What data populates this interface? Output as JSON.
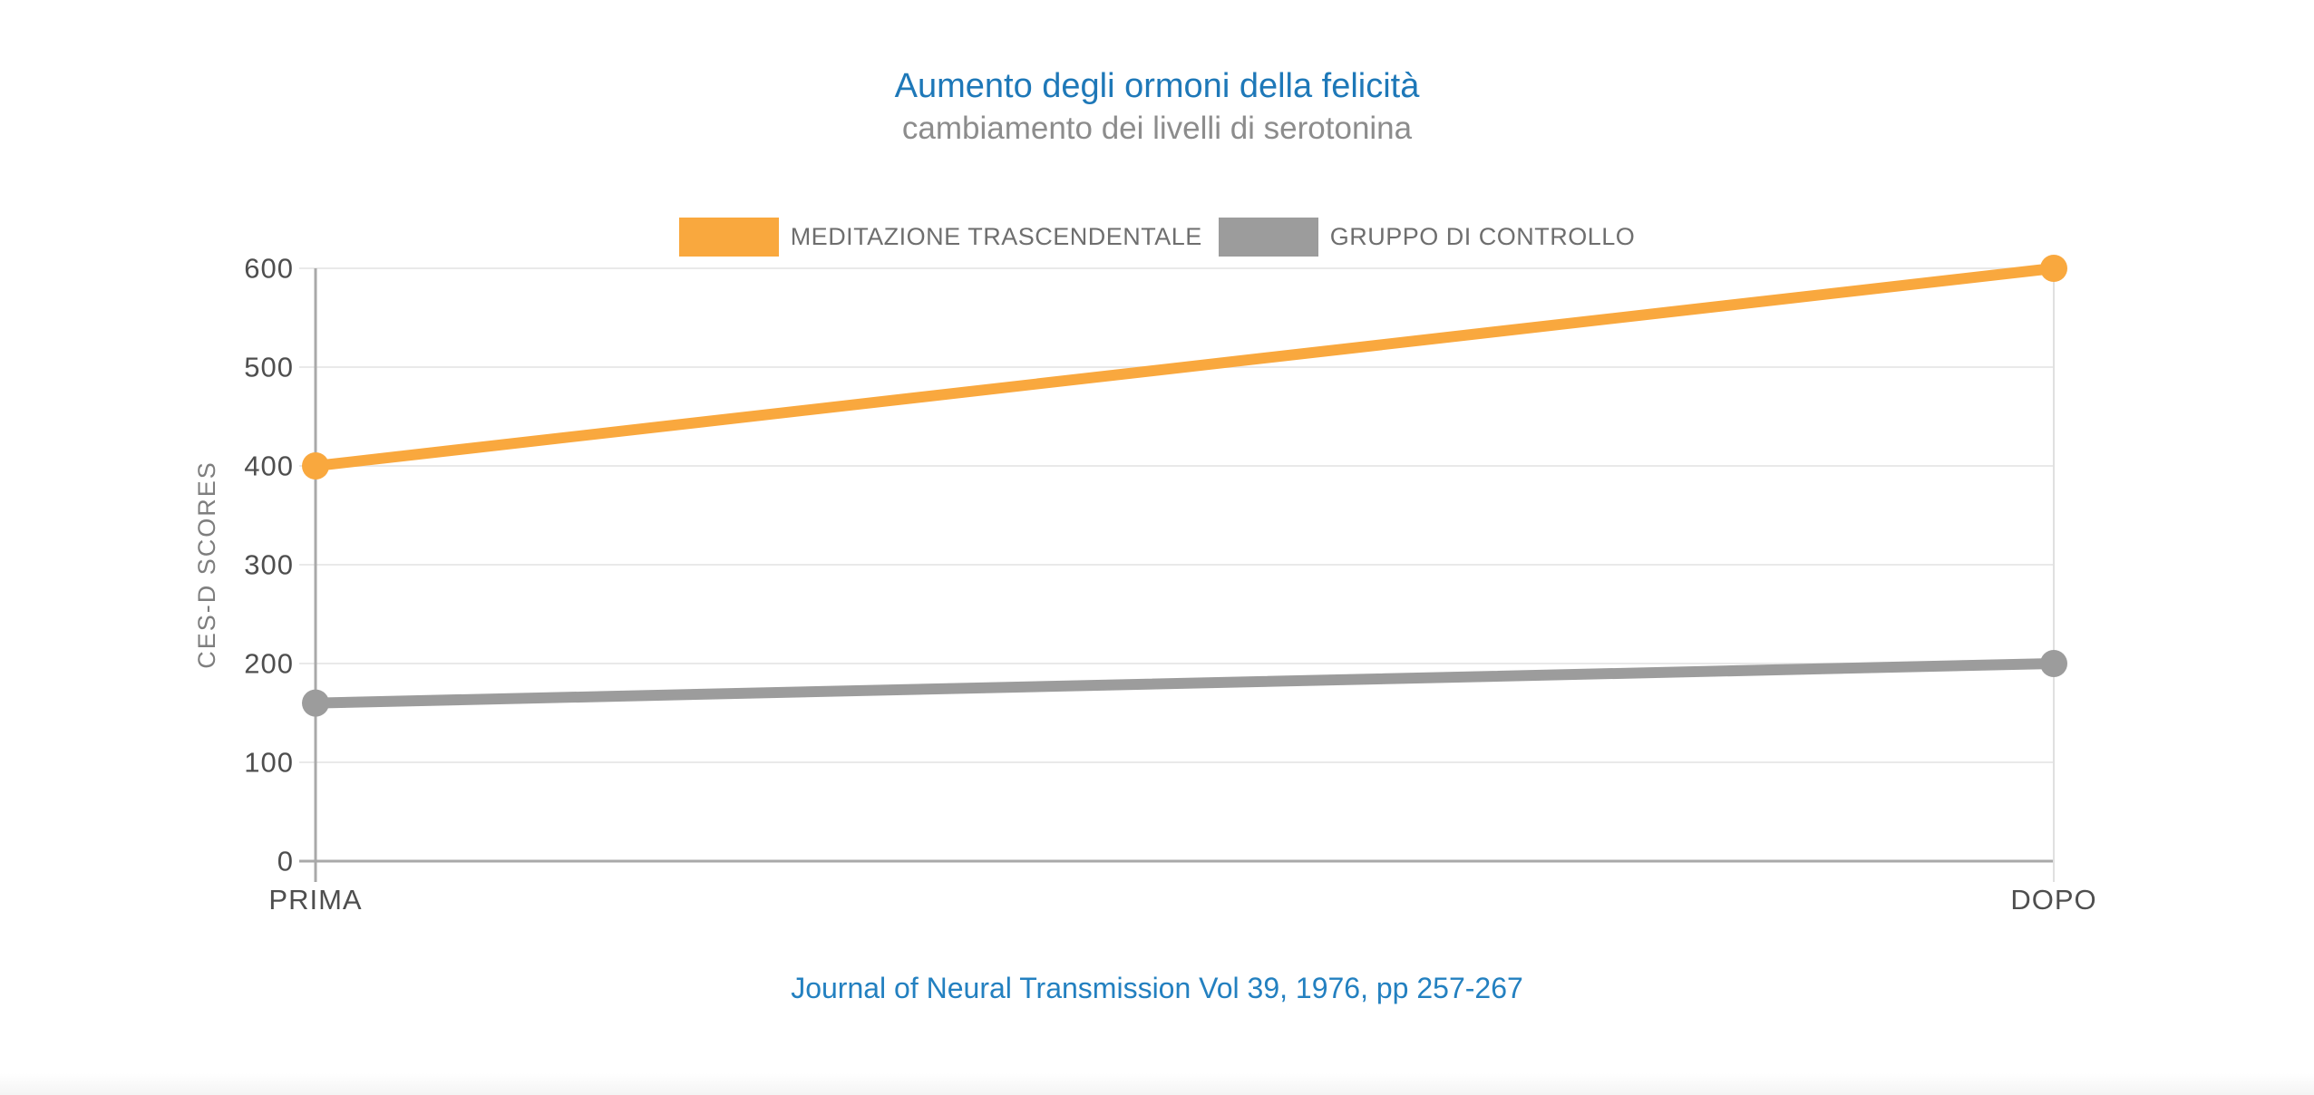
{
  "colors": {
    "title_blue": "#1E78B8",
    "subtitle_gray": "#8C8C8C",
    "legend_text": "#6E6E6E",
    "axis_text": "#4E4E4E",
    "axis_label_gray": "#7E7E7E",
    "footer_blue": "#2380C0",
    "grid_line": "#E9E9E9",
    "axis_line": "#A9A9A9",
    "right_axis_line": "#E0E0E0",
    "tm_orange": "#F9A83E",
    "control_gray": "#9C9C9C"
  },
  "chart_data": {
    "type": "line",
    "title": "Aumento degli ormoni della felicità",
    "subtitle": "cambiamento dei livelli di serotonina",
    "source": "Journal of Neural Transmission Vol 39, 1976, pp 257-267",
    "x": [
      "PRIMA",
      "DOPO"
    ],
    "series": [
      {
        "id": "meditazione-trascendentale",
        "name": "MEDITAZIONE TRASCENDENTALE",
        "values": [
          400,
          600
        ],
        "color": "#F9A83E"
      },
      {
        "id": "gruppo-di-controllo",
        "name": "GRUPPO DI CONTROLLO",
        "values": [
          160,
          200
        ],
        "color": "#9C9C9C"
      }
    ],
    "xlabel": "",
    "ylabel": "CES-D SCORES",
    "ylim": [
      0,
      600
    ],
    "ytick_step": 100,
    "grid": true,
    "legend_position": "top"
  }
}
